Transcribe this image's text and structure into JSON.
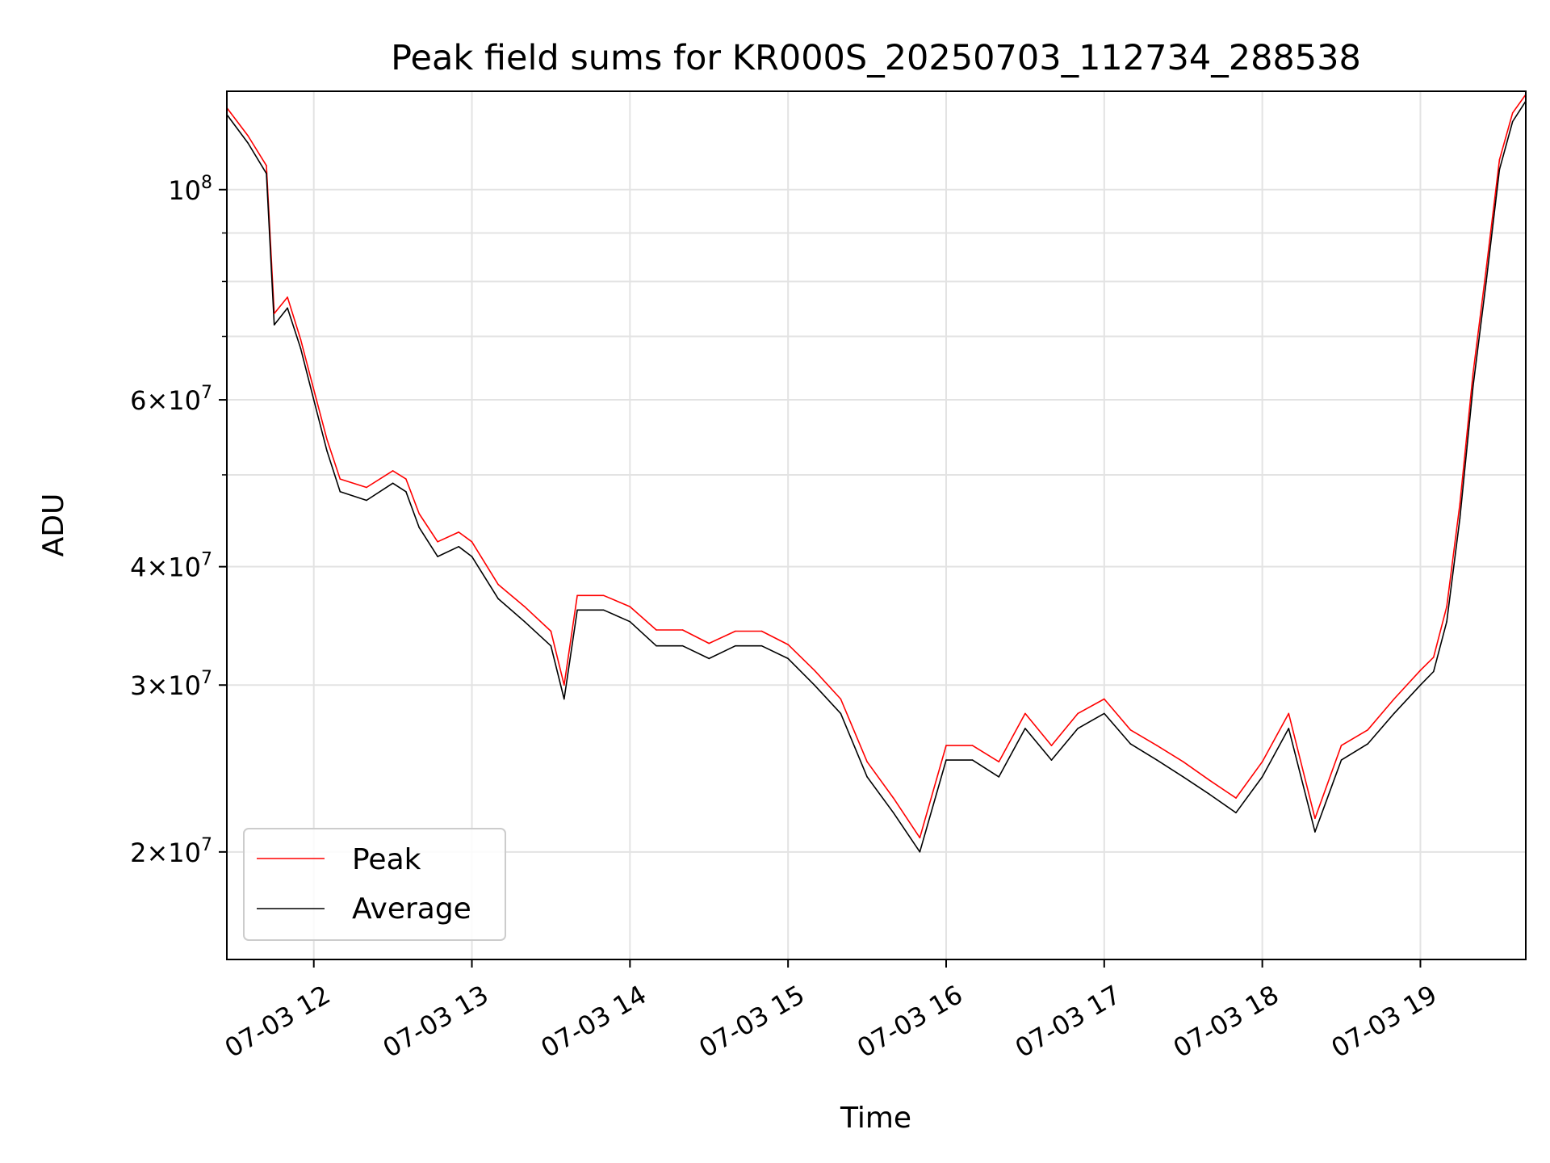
{
  "chart_data": {
    "type": "line",
    "title": "Peak field sums for KR000S_20250703_112734_288538",
    "xlabel": "Time",
    "ylabel": "ADU",
    "y_scale": "log",
    "ylim": [
      15400000,
      127000000
    ],
    "xlim": [
      "07-03 11:27",
      "07-03 19:40"
    ],
    "grid": true,
    "legend_position": "lower-left",
    "x_ticks": [
      "07-03 12",
      "07-03 13",
      "07-03 14",
      "07-03 15",
      "07-03 16",
      "07-03 17",
      "07-03 18",
      "07-03 19"
    ],
    "y_ticks": [
      {
        "base": "2",
        "exp": "7",
        "value": 20000000
      },
      {
        "base": "3",
        "exp": "7",
        "value": 30000000
      },
      {
        "base": "4",
        "exp": "7",
        "value": 40000000
      },
      {
        "base": "6",
        "exp": "7",
        "value": 60000000
      },
      {
        "base": "",
        "exp": "8",
        "value": 100000000
      }
    ],
    "series": [
      {
        "name": "Peak",
        "color": "#ff0000"
      },
      {
        "name": "Average",
        "color": "#000000"
      }
    ],
    "x": [
      "11:27",
      "11:35",
      "11:42",
      "11:45",
      "11:50",
      "11:55",
      "12:00",
      "12:05",
      "12:10",
      "12:20",
      "12:30",
      "12:35",
      "12:40",
      "12:47",
      "12:55",
      "13:00",
      "13:10",
      "13:20",
      "13:30",
      "13:35",
      "13:40",
      "13:50",
      "14:00",
      "14:10",
      "14:20",
      "14:30",
      "14:40",
      "14:50",
      "15:00",
      "15:10",
      "15:20",
      "15:30",
      "15:40",
      "15:50",
      "16:00",
      "16:10",
      "16:20",
      "16:30",
      "16:40",
      "16:50",
      "17:00",
      "17:10",
      "17:20",
      "17:30",
      "17:40",
      "17:50",
      "18:00",
      "18:10",
      "18:20",
      "18:30",
      "18:40",
      "18:50",
      "19:00",
      "19:05",
      "19:10",
      "19:15",
      "19:20",
      "19:25",
      "19:30",
      "19:35",
      "19:40"
    ],
    "y_average": [
      120000000,
      112000000,
      104000000,
      72000000,
      75000000,
      68000000,
      60000000,
      53000000,
      48000000,
      47000000,
      49000000,
      48000000,
      44000000,
      41000000,
      42000000,
      41000000,
      37000000,
      35000000,
      33000000,
      29000000,
      36000000,
      36000000,
      35000000,
      33000000,
      33000000,
      32000000,
      33000000,
      33000000,
      32000000,
      30000000,
      28000000,
      24000000,
      22000000,
      20000000,
      25000000,
      25000000,
      24000000,
      27000000,
      25000000,
      27000000,
      28000000,
      26000000,
      25000000,
      24000000,
      23000000,
      22000000,
      24000000,
      27000000,
      21000000,
      25000000,
      26000000,
      28000000,
      30000000,
      31000000,
      35000000,
      45000000,
      62000000,
      80000000,
      105000000,
      118000000,
      124000000
    ],
    "y_peak": [
      122000000,
      114000000,
      106000000,
      74000000,
      77000000,
      69500000,
      61500000,
      54500000,
      49500000,
      48500000,
      50500000,
      49500000,
      45500000,
      42500000,
      43500000,
      42500000,
      38300000,
      36300000,
      34200000,
      30000000,
      37300000,
      37300000,
      36300000,
      34300000,
      34300000,
      33200000,
      34200000,
      34200000,
      33100000,
      31100000,
      29000000,
      24900000,
      22800000,
      20700000,
      25900000,
      25900000,
      24900000,
      28000000,
      25900000,
      28000000,
      29000000,
      26900000,
      25900000,
      24900000,
      23800000,
      22800000,
      24900000,
      28000000,
      21700000,
      25900000,
      26900000,
      29000000,
      31100000,
      32100000,
      36300000,
      46600000,
      64000000,
      82500000,
      107500000,
      120500000,
      126000000
    ]
  }
}
